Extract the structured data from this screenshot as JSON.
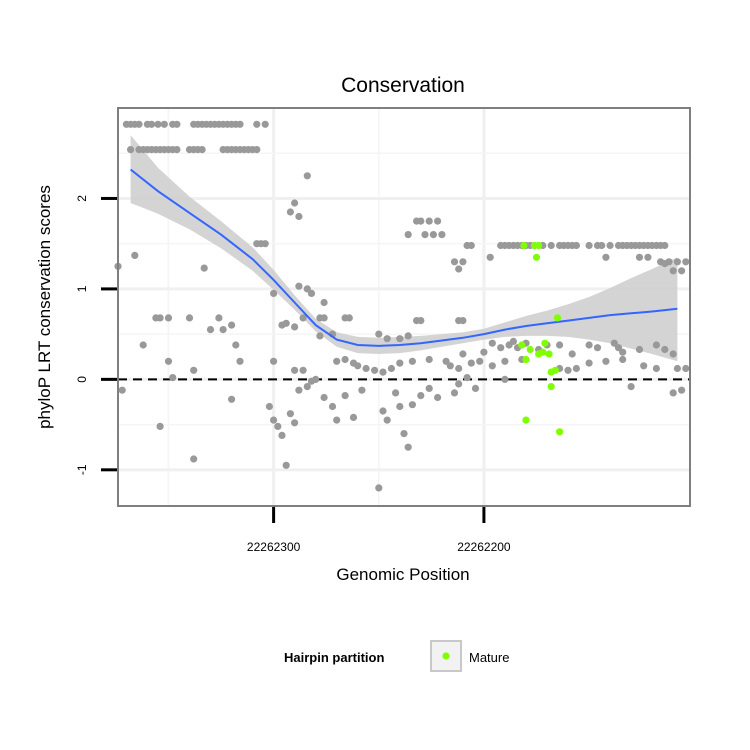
{
  "chart_data": {
    "type": "scatter",
    "title": "Conservation",
    "xlabel": "Genomic Position",
    "ylabel": "phyloP LRT conservation scores",
    "xlim": [
      22262374,
      22262102
    ],
    "x_reversed": true,
    "ylim": [
      -1.4,
      3.0
    ],
    "x_ticks": [
      {
        "value": 22262300,
        "label": "22262300"
      },
      {
        "value": 22262200,
        "label": "22262200"
      }
    ],
    "y_ticks": [
      {
        "value": -1,
        "label": "-1"
      },
      {
        "value": 0,
        "label": "0"
      },
      {
        "value": 1,
        "label": "1"
      },
      {
        "value": 2,
        "label": "2"
      }
    ],
    "reference_line": {
      "y": 0,
      "style": "dashed"
    },
    "legend": {
      "title": "Hairpin partition",
      "entries": [
        {
          "label": "Mature",
          "color": "#7FFF00"
        }
      ]
    },
    "colors": {
      "other": "#999999",
      "mature": "#7FFF00",
      "smooth": "#3366FF",
      "band": "#cccccc"
    },
    "smooth": {
      "x": [
        22262368,
        22262355,
        22262340,
        22262325,
        22262310,
        22262300,
        22262290,
        22262280,
        22262270,
        22262260,
        22262250,
        22262240,
        22262230,
        22262220,
        22262210,
        22262200,
        22262190,
        22262180,
        22262170,
        22262160,
        22262150,
        22262140,
        22262130,
        22262120,
        22262108
      ],
      "y": [
        2.32,
        2.08,
        1.84,
        1.6,
        1.33,
        1.1,
        0.85,
        0.6,
        0.44,
        0.38,
        0.37,
        0.38,
        0.4,
        0.43,
        0.46,
        0.5,
        0.55,
        0.59,
        0.62,
        0.65,
        0.68,
        0.71,
        0.73,
        0.75,
        0.78
      ],
      "lower": [
        1.95,
        1.83,
        1.66,
        1.45,
        1.2,
        0.99,
        0.77,
        0.53,
        0.36,
        0.29,
        0.28,
        0.29,
        0.32,
        0.36,
        0.4,
        0.44,
        0.47,
        0.48,
        0.48,
        0.47,
        0.44,
        0.4,
        0.34,
        0.28,
        0.2
      ],
      "upper": [
        2.7,
        2.34,
        2.02,
        1.75,
        1.46,
        1.21,
        0.93,
        0.67,
        0.52,
        0.47,
        0.46,
        0.47,
        0.48,
        0.5,
        0.52,
        0.56,
        0.63,
        0.7,
        0.76,
        0.83,
        0.91,
        1.01,
        1.12,
        1.22,
        1.35
      ]
    },
    "points_other": [
      [
        22262370,
        2.82
      ],
      [
        22262368,
        2.82
      ],
      [
        22262366,
        2.82
      ],
      [
        22262364,
        2.82
      ],
      [
        22262360,
        2.82
      ],
      [
        22262358,
        2.82
      ],
      [
        22262355,
        2.82
      ],
      [
        22262352,
        2.82
      ],
      [
        22262348,
        2.82
      ],
      [
        22262346,
        2.82
      ],
      [
        22262338,
        2.82
      ],
      [
        22262336,
        2.82
      ],
      [
        22262334,
        2.82
      ],
      [
        22262332,
        2.82
      ],
      [
        22262330,
        2.82
      ],
      [
        22262328,
        2.82
      ],
      [
        22262326,
        2.82
      ],
      [
        22262324,
        2.82
      ],
      [
        22262322,
        2.82
      ],
      [
        22262320,
        2.82
      ],
      [
        22262318,
        2.82
      ],
      [
        22262316,
        2.82
      ],
      [
        22262308,
        2.82
      ],
      [
        22262304,
        2.82
      ],
      [
        22262368,
        2.54
      ],
      [
        22262364,
        2.54
      ],
      [
        22262362,
        2.54
      ],
      [
        22262360,
        2.54
      ],
      [
        22262358,
        2.54
      ],
      [
        22262356,
        2.54
      ],
      [
        22262354,
        2.54
      ],
      [
        22262352,
        2.54
      ],
      [
        22262350,
        2.54
      ],
      [
        22262348,
        2.54
      ],
      [
        22262346,
        2.54
      ],
      [
        22262340,
        2.54
      ],
      [
        22262338,
        2.54
      ],
      [
        22262336,
        2.54
      ],
      [
        22262334,
        2.54
      ],
      [
        22262324,
        2.54
      ],
      [
        22262322,
        2.54
      ],
      [
        22262320,
        2.54
      ],
      [
        22262318,
        2.54
      ],
      [
        22262316,
        2.54
      ],
      [
        22262314,
        2.54
      ],
      [
        22262312,
        2.54
      ],
      [
        22262310,
        2.54
      ],
      [
        22262308,
        2.54
      ],
      [
        22262284,
        2.25
      ],
      [
        22262290,
        1.95
      ],
      [
        22262292,
        1.85
      ],
      [
        22262288,
        1.8
      ],
      [
        22262232,
        1.75
      ],
      [
        22262230,
        1.75
      ],
      [
        22262226,
        1.75
      ],
      [
        22262222,
        1.75
      ],
      [
        22262228,
        1.6
      ],
      [
        22262236,
        1.6
      ],
      [
        22262220,
        1.6
      ],
      [
        22262224,
        1.6
      ],
      [
        22262308,
        1.5
      ],
      [
        22262306,
        1.5
      ],
      [
        22262304,
        1.5
      ],
      [
        22262208,
        1.48
      ],
      [
        22262206,
        1.48
      ],
      [
        22262192,
        1.48
      ],
      [
        22262190,
        1.48
      ],
      [
        22262188,
        1.48
      ],
      [
        22262186,
        1.48
      ],
      [
        22262184,
        1.48
      ],
      [
        22262182,
        1.48
      ],
      [
        22262180,
        1.48
      ],
      [
        22262178,
        1.48
      ],
      [
        22262176,
        1.48
      ],
      [
        22262174,
        1.48
      ],
      [
        22262172,
        1.48
      ],
      [
        22262168,
        1.48
      ],
      [
        22262164,
        1.48
      ],
      [
        22262162,
        1.48
      ],
      [
        22262160,
        1.48
      ],
      [
        22262158,
        1.48
      ],
      [
        22262156,
        1.48
      ],
      [
        22262150,
        1.48
      ],
      [
        22262146,
        1.48
      ],
      [
        22262144,
        1.48
      ],
      [
        22262140,
        1.48
      ],
      [
        22262136,
        1.48
      ],
      [
        22262134,
        1.48
      ],
      [
        22262132,
        1.48
      ],
      [
        22262130,
        1.48
      ],
      [
        22262128,
        1.48
      ],
      [
        22262126,
        1.48
      ],
      [
        22262124,
        1.48
      ],
      [
        22262122,
        1.48
      ],
      [
        22262120,
        1.48
      ],
      [
        22262118,
        1.48
      ],
      [
        22262116,
        1.48
      ],
      [
        22262114,
        1.48
      ],
      [
        22262197,
        1.35
      ],
      [
        22262142,
        1.35
      ],
      [
        22262126,
        1.35
      ],
      [
        22262122,
        1.35
      ],
      [
        22262108,
        1.3
      ],
      [
        22262104,
        1.3
      ],
      [
        22262210,
        1.3
      ],
      [
        22262214,
        1.3
      ],
      [
        22262212,
        1.22
      ],
      [
        22262112,
        1.3
      ],
      [
        22262116,
        1.3
      ],
      [
        22262374,
        1.25
      ],
      [
        22262366,
        1.37
      ],
      [
        22262333,
        1.23
      ],
      [
        22262106,
        1.2
      ],
      [
        22262110,
        1.2
      ],
      [
        22262114,
        1.28
      ],
      [
        22262288,
        1.03
      ],
      [
        22262284,
        1.0
      ],
      [
        22262282,
        0.95
      ],
      [
        22262276,
        0.85
      ],
      [
        22262300,
        0.95
      ],
      [
        22262356,
        0.68
      ],
      [
        22262354,
        0.68
      ],
      [
        22262350,
        0.68
      ],
      [
        22262340,
        0.68
      ],
      [
        22262326,
        0.68
      ],
      [
        22262286,
        0.68
      ],
      [
        22262278,
        0.68
      ],
      [
        22262276,
        0.68
      ],
      [
        22262266,
        0.68
      ],
      [
        22262264,
        0.68
      ],
      [
        22262232,
        0.65
      ],
      [
        22262230,
        0.65
      ],
      [
        22262212,
        0.65
      ],
      [
        22262210,
        0.65
      ],
      [
        22262320,
        0.6
      ],
      [
        22262330,
        0.55
      ],
      [
        22262324,
        0.55
      ],
      [
        22262290,
        0.58
      ],
      [
        22262294,
        0.62
      ],
      [
        22262296,
        0.6
      ],
      [
        22262272,
        0.5
      ],
      [
        22262278,
        0.48
      ],
      [
        22262246,
        0.45
      ],
      [
        22262236,
        0.48
      ],
      [
        22262250,
        0.5
      ],
      [
        22262240,
        0.45
      ],
      [
        22262362,
        0.38
      ],
      [
        22262318,
        0.38
      ],
      [
        22262210,
        0.28
      ],
      [
        22262200,
        0.3
      ],
      [
        22262196,
        0.4
      ],
      [
        22262192,
        0.35
      ],
      [
        22262188,
        0.38
      ],
      [
        22262186,
        0.42
      ],
      [
        22262184,
        0.35
      ],
      [
        22262180,
        0.4
      ],
      [
        22262174,
        0.33
      ],
      [
        22262170,
        0.38
      ],
      [
        22262164,
        0.38
      ],
      [
        22262158,
        0.28
      ],
      [
        22262150,
        0.38
      ],
      [
        22262146,
        0.35
      ],
      [
        22262138,
        0.4
      ],
      [
        22262136,
        0.35
      ],
      [
        22262134,
        0.3
      ],
      [
        22262126,
        0.33
      ],
      [
        22262118,
        0.38
      ],
      [
        22262114,
        0.33
      ],
      [
        22262110,
        0.28
      ],
      [
        22262350,
        0.2
      ],
      [
        22262338,
        0.1
      ],
      [
        22262316,
        0.2
      ],
      [
        22262300,
        0.2
      ],
      [
        22262290,
        0.1
      ],
      [
        22262286,
        0.1
      ],
      [
        22262270,
        0.2
      ],
      [
        22262266,
        0.22
      ],
      [
        22262262,
        0.18
      ],
      [
        22262260,
        0.15
      ],
      [
        22262256,
        0.12
      ],
      [
        22262252,
        0.1
      ],
      [
        22262248,
        0.08
      ],
      [
        22262244,
        0.12
      ],
      [
        22262240,
        0.18
      ],
      [
        22262234,
        0.2
      ],
      [
        22262226,
        0.22
      ],
      [
        22262218,
        0.2
      ],
      [
        22262216,
        0.15
      ],
      [
        22262212,
        0.12
      ],
      [
        22262206,
        0.18
      ],
      [
        22262202,
        0.2
      ],
      [
        22262196,
        0.15
      ],
      [
        22262190,
        0.2
      ],
      [
        22262182,
        0.22
      ],
      [
        22262164,
        0.12
      ],
      [
        22262160,
        0.1
      ],
      [
        22262156,
        0.12
      ],
      [
        22262150,
        0.18
      ],
      [
        22262142,
        0.2
      ],
      [
        22262134,
        0.22
      ],
      [
        22262124,
        0.15
      ],
      [
        22262118,
        0.12
      ],
      [
        22262108,
        0.12
      ],
      [
        22262104,
        0.12
      ],
      [
        22262372,
        -0.12
      ],
      [
        22262354,
        -0.52
      ],
      [
        22262348,
        0.02
      ],
      [
        22262338,
        -0.88
      ],
      [
        22262320,
        -0.22
      ],
      [
        22262302,
        -0.3
      ],
      [
        22262300,
        -0.45
      ],
      [
        22262298,
        -0.52
      ],
      [
        22262296,
        -0.62
      ],
      [
        22262294,
        -0.95
      ],
      [
        22262292,
        -0.38
      ],
      [
        22262290,
        -0.48
      ],
      [
        22262288,
        -0.12
      ],
      [
        22262284,
        -0.08
      ],
      [
        22262282,
        -0.02
      ],
      [
        22262280,
        0.0
      ],
      [
        22262276,
        -0.2
      ],
      [
        22262272,
        -0.3
      ],
      [
        22262270,
        -0.45
      ],
      [
        22262266,
        -0.18
      ],
      [
        22262262,
        -0.42
      ],
      [
        22262258,
        -0.12
      ],
      [
        22262250,
        -1.2
      ],
      [
        22262248,
        -0.35
      ],
      [
        22262246,
        -0.45
      ],
      [
        22262242,
        -0.15
      ],
      [
        22262240,
        -0.3
      ],
      [
        22262238,
        -0.6
      ],
      [
        22262236,
        -0.75
      ],
      [
        22262234,
        -0.28
      ],
      [
        22262230,
        -0.18
      ],
      [
        22262226,
        -0.1
      ],
      [
        22262222,
        -0.2
      ],
      [
        22262214,
        -0.15
      ],
      [
        22262212,
        -0.05
      ],
      [
        22262208,
        0.02
      ],
      [
        22262204,
        -0.1
      ],
      [
        22262190,
        0.0
      ],
      [
        22262130,
        -0.08
      ],
      [
        22262110,
        -0.15
      ],
      [
        22262106,
        -0.12
      ]
    ],
    "points_mature": [
      [
        22262181,
        1.48
      ],
      [
        22262176,
        1.48
      ],
      [
        22262174,
        1.48
      ],
      [
        22262175,
        1.35
      ],
      [
        22262182,
        0.38
      ],
      [
        22262180,
        0.22
      ],
      [
        22262178,
        0.33
      ],
      [
        22262174,
        0.28
      ],
      [
        22262171,
        0.4
      ],
      [
        22262172,
        0.3
      ],
      [
        22262169,
        0.28
      ],
      [
        22262165,
        0.68
      ],
      [
        22262168,
        0.08
      ],
      [
        22262166,
        0.1
      ],
      [
        22262168,
        -0.08
      ],
      [
        22262180,
        -0.45
      ],
      [
        22262164,
        -0.58
      ]
    ]
  }
}
